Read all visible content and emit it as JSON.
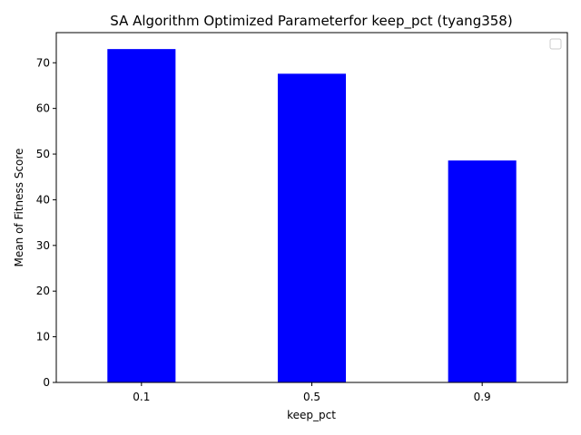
{
  "chart_data": {
    "type": "bar",
    "title": "SA Algorithm Optimized Parameterfor keep_pct (tyang358)",
    "xlabel": "keep_pct",
    "ylabel": "Mean of Fitness Score",
    "categories": [
      "0.1",
      "0.5",
      "0.9"
    ],
    "values": [
      73.0,
      67.6,
      48.6
    ],
    "ylim": [
      0,
      76.6
    ],
    "yticks": [
      0,
      10,
      20,
      30,
      40,
      50,
      60,
      70
    ],
    "bar_color": "#0000ff",
    "grid": false,
    "legend": {
      "location": "top-right",
      "entries": []
    }
  }
}
